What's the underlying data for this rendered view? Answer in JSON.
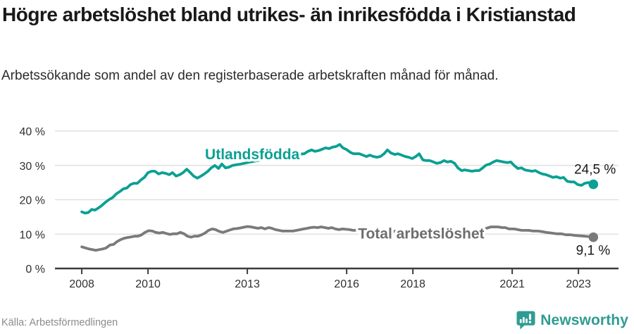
{
  "chart_data": {
    "type": "line",
    "title": "Högre arbetslöshet bland utrikes- än inrikesfödda i Kristianstad",
    "subtitle": "Arbetssökande som andel av den registerbaserade arbetskraften månad för månad.",
    "source": "Källa: Arbetsförmedlingen",
    "xlabel": "",
    "ylabel": "",
    "xlim": [
      2007.19,
      2024.21
    ],
    "ylim": [
      0,
      40
    ],
    "grid": "horizontal-only",
    "legend_position": "inline-labels",
    "x_ticks": [
      2008,
      2010,
      2013,
      2016,
      2018,
      2021,
      2023
    ],
    "y_ticks": [
      0,
      10,
      20,
      30,
      40
    ],
    "y_tick_suffix": " %",
    "series": [
      {
        "name": "Utlandsfödda",
        "color": "#0BA093",
        "label_color": "#0BA093",
        "end_label": "24,5 %",
        "end_value": 24.5,
        "label_at": [
          2013.15,
          33.2
        ],
        "end_label_offset": [
          32,
          -15
        ],
        "points": [
          [
            2008.0,
            16.5
          ],
          [
            2008.1,
            16.1
          ],
          [
            2008.2,
            16.3
          ],
          [
            2008.3,
            17.2
          ],
          [
            2008.4,
            17.0
          ],
          [
            2008.5,
            17.6
          ],
          [
            2008.6,
            18.3
          ],
          [
            2008.72,
            19.3
          ],
          [
            2008.83,
            20.1
          ],
          [
            2008.94,
            20.7
          ],
          [
            2009.04,
            21.7
          ],
          [
            2009.15,
            22.4
          ],
          [
            2009.26,
            23.2
          ],
          [
            2009.36,
            23.4
          ],
          [
            2009.47,
            24.4
          ],
          [
            2009.57,
            24.8
          ],
          [
            2009.68,
            24.8
          ],
          [
            2009.79,
            25.8
          ],
          [
            2009.89,
            26.5
          ],
          [
            2010.0,
            27.9
          ],
          [
            2010.11,
            28.3
          ],
          [
            2010.21,
            28.3
          ],
          [
            2010.32,
            27.5
          ],
          [
            2010.43,
            27.9
          ],
          [
            2010.53,
            27.7
          ],
          [
            2010.64,
            27.3
          ],
          [
            2010.74,
            27.9
          ],
          [
            2010.85,
            26.9
          ],
          [
            2010.96,
            27.3
          ],
          [
            2011.06,
            27.9
          ],
          [
            2011.17,
            28.9
          ],
          [
            2011.28,
            27.9
          ],
          [
            2011.38,
            26.9
          ],
          [
            2011.49,
            26.3
          ],
          [
            2011.6,
            26.9
          ],
          [
            2011.7,
            27.5
          ],
          [
            2011.81,
            28.3
          ],
          [
            2011.91,
            29.3
          ],
          [
            2012.02,
            30.0
          ],
          [
            2012.13,
            29.1
          ],
          [
            2012.23,
            30.4
          ],
          [
            2012.34,
            29.3
          ],
          [
            2012.45,
            29.5
          ],
          [
            2012.55,
            30.0
          ],
          [
            2012.75,
            30.3
          ],
          [
            2013.0,
            30.8
          ],
          [
            2013.25,
            31.3
          ],
          [
            2013.5,
            31.8
          ],
          [
            2013.75,
            32.3
          ],
          [
            2014.0,
            32.7
          ],
          [
            2014.25,
            33.0
          ],
          [
            2014.5,
            33.2
          ],
          [
            2014.72,
            33.4
          ],
          [
            2014.83,
            34.1
          ],
          [
            2014.94,
            34.5
          ],
          [
            2015.04,
            34.1
          ],
          [
            2015.15,
            34.3
          ],
          [
            2015.26,
            34.7
          ],
          [
            2015.36,
            35.1
          ],
          [
            2015.47,
            34.9
          ],
          [
            2015.57,
            35.3
          ],
          [
            2015.68,
            35.5
          ],
          [
            2015.79,
            36.1
          ],
          [
            2015.89,
            35.1
          ],
          [
            2016.0,
            34.6
          ],
          [
            2016.11,
            33.8
          ],
          [
            2016.21,
            33.4
          ],
          [
            2016.38,
            33.4
          ],
          [
            2016.49,
            33.0
          ],
          [
            2016.6,
            32.6
          ],
          [
            2016.7,
            33.0
          ],
          [
            2016.81,
            32.6
          ],
          [
            2016.91,
            32.4
          ],
          [
            2017.02,
            32.6
          ],
          [
            2017.13,
            33.4
          ],
          [
            2017.23,
            34.5
          ],
          [
            2017.34,
            33.6
          ],
          [
            2017.45,
            33.2
          ],
          [
            2017.55,
            33.4
          ],
          [
            2017.66,
            33.0
          ],
          [
            2017.77,
            32.6
          ],
          [
            2017.87,
            32.4
          ],
          [
            2017.98,
            32.0
          ],
          [
            2018.09,
            32.6
          ],
          [
            2018.19,
            33.4
          ],
          [
            2018.3,
            31.6
          ],
          [
            2018.4,
            31.4
          ],
          [
            2018.51,
            31.4
          ],
          [
            2018.62,
            31.0
          ],
          [
            2018.72,
            30.6
          ],
          [
            2018.83,
            30.8
          ],
          [
            2018.94,
            31.4
          ],
          [
            2019.04,
            31.0
          ],
          [
            2019.15,
            31.2
          ],
          [
            2019.26,
            30.6
          ],
          [
            2019.36,
            29.3
          ],
          [
            2019.47,
            28.5
          ],
          [
            2019.57,
            28.7
          ],
          [
            2019.68,
            28.5
          ],
          [
            2019.79,
            28.3
          ],
          [
            2019.89,
            28.5
          ],
          [
            2020.0,
            28.5
          ],
          [
            2020.11,
            29.3
          ],
          [
            2020.21,
            30.1
          ],
          [
            2020.32,
            30.4
          ],
          [
            2020.43,
            31.0
          ],
          [
            2020.53,
            31.4
          ],
          [
            2020.64,
            31.2
          ],
          [
            2020.74,
            31.0
          ],
          [
            2020.85,
            30.8
          ],
          [
            2020.96,
            31.0
          ],
          [
            2021.06,
            30.0
          ],
          [
            2021.17,
            29.1
          ],
          [
            2021.28,
            29.3
          ],
          [
            2021.38,
            28.7
          ],
          [
            2021.49,
            28.5
          ],
          [
            2021.6,
            28.3
          ],
          [
            2021.7,
            28.5
          ],
          [
            2021.81,
            27.9
          ],
          [
            2021.91,
            27.5
          ],
          [
            2022.02,
            27.3
          ],
          [
            2022.13,
            26.9
          ],
          [
            2022.23,
            26.5
          ],
          [
            2022.34,
            26.7
          ],
          [
            2022.45,
            26.3
          ],
          [
            2022.55,
            26.5
          ],
          [
            2022.66,
            25.4
          ],
          [
            2022.77,
            25.2
          ],
          [
            2022.87,
            25.2
          ],
          [
            2022.98,
            24.4
          ],
          [
            2023.09,
            24.2
          ],
          [
            2023.19,
            24.8
          ],
          [
            2023.3,
            25.0
          ],
          [
            2023.45,
            24.5
          ]
        ]
      },
      {
        "name": "Total arbetslöshet",
        "color": "#7A7A7A",
        "label_color": "#6E6E6E",
        "end_label": "9,1 %",
        "end_value": 9.1,
        "label_at": [
          2018.25,
          10.2
        ],
        "end_label_offset": [
          24,
          25
        ],
        "points": [
          [
            2008.0,
            6.3
          ],
          [
            2008.11,
            6.0
          ],
          [
            2008.21,
            5.7
          ],
          [
            2008.32,
            5.5
          ],
          [
            2008.43,
            5.3
          ],
          [
            2008.53,
            5.5
          ],
          [
            2008.64,
            5.7
          ],
          [
            2008.74,
            6.0
          ],
          [
            2008.85,
            6.8
          ],
          [
            2008.96,
            7.0
          ],
          [
            2009.06,
            7.8
          ],
          [
            2009.17,
            8.4
          ],
          [
            2009.28,
            8.8
          ],
          [
            2009.38,
            9.0
          ],
          [
            2009.49,
            9.2
          ],
          [
            2009.6,
            9.4
          ],
          [
            2009.7,
            9.4
          ],
          [
            2009.81,
            9.8
          ],
          [
            2009.91,
            10.5
          ],
          [
            2010.02,
            11.0
          ],
          [
            2010.13,
            10.9
          ],
          [
            2010.23,
            10.5
          ],
          [
            2010.34,
            10.3
          ],
          [
            2010.45,
            10.5
          ],
          [
            2010.55,
            10.2
          ],
          [
            2010.66,
            9.9
          ],
          [
            2010.77,
            10.1
          ],
          [
            2010.87,
            10.1
          ],
          [
            2010.98,
            10.5
          ],
          [
            2011.09,
            10.1
          ],
          [
            2011.19,
            9.4
          ],
          [
            2011.3,
            9.1
          ],
          [
            2011.4,
            9.4
          ],
          [
            2011.51,
            9.4
          ],
          [
            2011.62,
            9.8
          ],
          [
            2011.72,
            10.3
          ],
          [
            2011.83,
            11.1
          ],
          [
            2011.94,
            11.5
          ],
          [
            2012.04,
            11.3
          ],
          [
            2012.15,
            10.8
          ],
          [
            2012.26,
            10.5
          ],
          [
            2012.36,
            10.8
          ],
          [
            2012.47,
            11.2
          ],
          [
            2012.57,
            11.5
          ],
          [
            2012.68,
            11.6
          ],
          [
            2012.79,
            11.8
          ],
          [
            2012.89,
            12.0
          ],
          [
            2013.0,
            12.2
          ],
          [
            2013.11,
            12.1
          ],
          [
            2013.21,
            11.9
          ],
          [
            2013.32,
            11.7
          ],
          [
            2013.43,
            11.9
          ],
          [
            2013.53,
            11.5
          ],
          [
            2013.64,
            11.9
          ],
          [
            2013.74,
            11.7
          ],
          [
            2013.85,
            11.3
          ],
          [
            2013.96,
            11.1
          ],
          [
            2014.06,
            10.9
          ],
          [
            2014.17,
            10.9
          ],
          [
            2014.28,
            10.9
          ],
          [
            2014.38,
            10.9
          ],
          [
            2014.49,
            11.1
          ],
          [
            2014.6,
            11.3
          ],
          [
            2014.7,
            11.5
          ],
          [
            2014.81,
            11.7
          ],
          [
            2014.91,
            11.9
          ],
          [
            2015.02,
            12.0
          ],
          [
            2015.13,
            11.9
          ],
          [
            2015.23,
            12.1
          ],
          [
            2015.34,
            11.9
          ],
          [
            2015.45,
            11.7
          ],
          [
            2015.55,
            11.9
          ],
          [
            2015.66,
            11.5
          ],
          [
            2015.77,
            11.3
          ],
          [
            2015.87,
            11.5
          ],
          [
            2015.98,
            11.4
          ],
          [
            2016.09,
            11.3
          ],
          [
            2016.19,
            11.1
          ],
          [
            2016.5,
            11.2
          ],
          [
            2017.0,
            11.0
          ],
          [
            2017.5,
            10.8
          ],
          [
            2018.0,
            10.7
          ],
          [
            2018.5,
            10.5
          ],
          [
            2019.0,
            10.4
          ],
          [
            2019.5,
            10.3
          ],
          [
            2019.75,
            10.4
          ],
          [
            2020.0,
            10.9
          ],
          [
            2020.25,
            11.8
          ],
          [
            2020.36,
            12.1
          ],
          [
            2020.47,
            12.1
          ],
          [
            2020.57,
            12.1
          ],
          [
            2020.7,
            11.9
          ],
          [
            2020.79,
            11.9
          ],
          [
            2020.91,
            11.5
          ],
          [
            2021.06,
            11.5
          ],
          [
            2021.17,
            11.3
          ],
          [
            2021.28,
            11.1
          ],
          [
            2021.4,
            11.1
          ],
          [
            2021.49,
            11.1
          ],
          [
            2021.64,
            10.9
          ],
          [
            2021.77,
            10.9
          ],
          [
            2021.91,
            10.7
          ],
          [
            2022.02,
            10.5
          ],
          [
            2022.19,
            10.3
          ],
          [
            2022.34,
            10.1
          ],
          [
            2022.49,
            10.1
          ],
          [
            2022.62,
            9.8
          ],
          [
            2022.77,
            9.8
          ],
          [
            2022.91,
            9.6
          ],
          [
            2023.06,
            9.5
          ],
          [
            2023.19,
            9.4
          ],
          [
            2023.3,
            9.3
          ],
          [
            2023.45,
            9.1
          ]
        ]
      }
    ]
  },
  "branding": {
    "name": "Newsworthy",
    "color": "#2F9C93"
  },
  "colors": {
    "accent_teal": "#0BA093",
    "line_gray": "#7A7A7A",
    "grid": "#DBDBDB",
    "axis": "#3D3D3D",
    "tick_label": "#303030",
    "end_label_text": "#1A1A1A",
    "title_text": "#191919",
    "subtitle_text": "#2B2B2B",
    "source_text": "#8C8C8C",
    "brand_teal": "#2F9C93"
  }
}
